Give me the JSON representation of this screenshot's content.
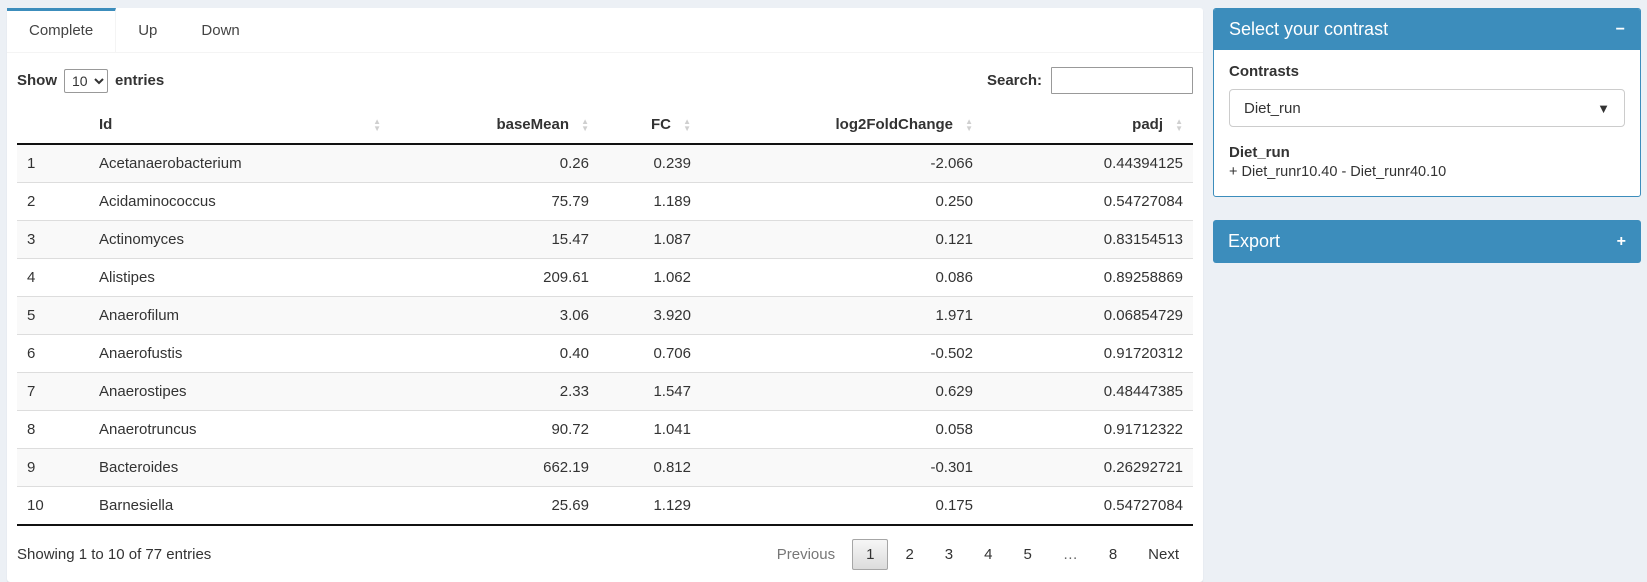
{
  "colors": {
    "primary": "#3c8dbc",
    "background": "#ecf0f5",
    "stripe": "#f9f9f9"
  },
  "tabs": [
    {
      "label": "Complete",
      "active": true
    },
    {
      "label": "Up",
      "active": false
    },
    {
      "label": "Down",
      "active": false
    }
  ],
  "controls": {
    "show_label": "Show",
    "page_length": "10",
    "entries_label": "entries",
    "search_label": "Search:",
    "search_value": ""
  },
  "table": {
    "columns": [
      "Id",
      "baseMean",
      "FC",
      "log2FoldChange",
      "padj"
    ],
    "rows": [
      {
        "num": "1",
        "id": "Acetanaerobacterium",
        "baseMean": "0.26",
        "fc": "0.239",
        "log2fc": "-2.066",
        "padj": "0.44394125"
      },
      {
        "num": "2",
        "id": "Acidaminococcus",
        "baseMean": "75.79",
        "fc": "1.189",
        "log2fc": "0.250",
        "padj": "0.54727084"
      },
      {
        "num": "3",
        "id": "Actinomyces",
        "baseMean": "15.47",
        "fc": "1.087",
        "log2fc": "0.121",
        "padj": "0.83154513"
      },
      {
        "num": "4",
        "id": "Alistipes",
        "baseMean": "209.61",
        "fc": "1.062",
        "log2fc": "0.086",
        "padj": "0.89258869"
      },
      {
        "num": "5",
        "id": "Anaerofilum",
        "baseMean": "3.06",
        "fc": "3.920",
        "log2fc": "1.971",
        "padj": "0.06854729"
      },
      {
        "num": "6",
        "id": "Anaerofustis",
        "baseMean": "0.40",
        "fc": "0.706",
        "log2fc": "-0.502",
        "padj": "0.91720312"
      },
      {
        "num": "7",
        "id": "Anaerostipes",
        "baseMean": "2.33",
        "fc": "1.547",
        "log2fc": "0.629",
        "padj": "0.48447385"
      },
      {
        "num": "8",
        "id": "Anaerotruncus",
        "baseMean": "90.72",
        "fc": "1.041",
        "log2fc": "0.058",
        "padj": "0.91712322"
      },
      {
        "num": "9",
        "id": "Bacteroides",
        "baseMean": "662.19",
        "fc": "0.812",
        "log2fc": "-0.301",
        "padj": "0.26292721"
      },
      {
        "num": "10",
        "id": "Barnesiella",
        "baseMean": "25.69",
        "fc": "1.129",
        "log2fc": "0.175",
        "padj": "0.54727084"
      }
    ]
  },
  "footer": {
    "info": "Showing 1 to 10 of 77 entries",
    "pagination": [
      {
        "label": "Previous",
        "state": "disabled"
      },
      {
        "label": "1",
        "state": "active"
      },
      {
        "label": "2",
        "state": "normal"
      },
      {
        "label": "3",
        "state": "normal"
      },
      {
        "label": "4",
        "state": "normal"
      },
      {
        "label": "5",
        "state": "normal"
      },
      {
        "label": "…",
        "state": "ellipsis"
      },
      {
        "label": "8",
        "state": "normal"
      },
      {
        "label": "Next",
        "state": "normal"
      }
    ]
  },
  "contrast_panel": {
    "title": "Select your contrast",
    "collapse_icon": "−",
    "contrasts_label": "Contrasts",
    "selected_contrast": "Diet_run",
    "select_caret": "▼",
    "contrast_name": "Diet_run",
    "contrast_formula": "+ Diet_runr10.40 - Diet_runr40.10"
  },
  "export_panel": {
    "title": "Export",
    "expand_icon": "+"
  }
}
